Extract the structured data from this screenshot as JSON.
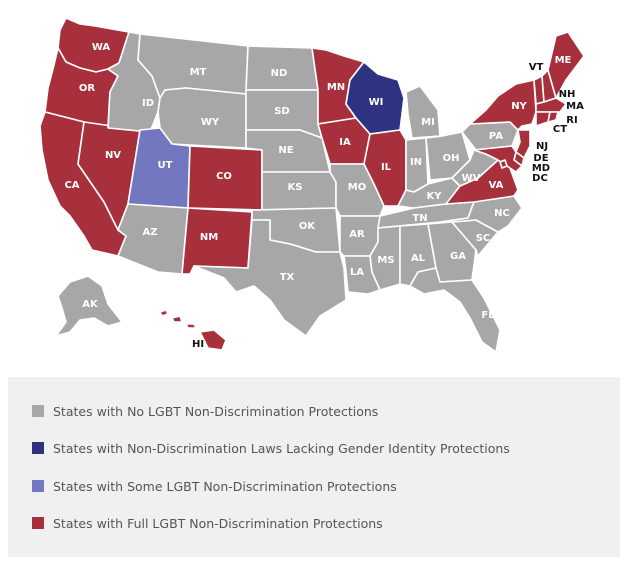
{
  "colors": {
    "none": "#a7a7a7",
    "partial_no_gender": "#2d3380",
    "some": "#7277c0",
    "full": "#a8303c"
  },
  "states": [
    {
      "abbr": "WA",
      "status": "full"
    },
    {
      "abbr": "OR",
      "status": "full"
    },
    {
      "abbr": "CA",
      "status": "full"
    },
    {
      "abbr": "NV",
      "status": "full"
    },
    {
      "abbr": "ID",
      "status": "none"
    },
    {
      "abbr": "MT",
      "status": "none"
    },
    {
      "abbr": "WY",
      "status": "none"
    },
    {
      "abbr": "UT",
      "status": "some"
    },
    {
      "abbr": "CO",
      "status": "full"
    },
    {
      "abbr": "AZ",
      "status": "none"
    },
    {
      "abbr": "NM",
      "status": "full"
    },
    {
      "abbr": "ND",
      "status": "none"
    },
    {
      "abbr": "SD",
      "status": "none"
    },
    {
      "abbr": "NE",
      "status": "none"
    },
    {
      "abbr": "KS",
      "status": "none"
    },
    {
      "abbr": "OK",
      "status": "none"
    },
    {
      "abbr": "TX",
      "status": "none"
    },
    {
      "abbr": "MN",
      "status": "full"
    },
    {
      "abbr": "IA",
      "status": "full"
    },
    {
      "abbr": "MO",
      "status": "none"
    },
    {
      "abbr": "AR",
      "status": "none"
    },
    {
      "abbr": "LA",
      "status": "none"
    },
    {
      "abbr": "WI",
      "status": "partial_no_gender"
    },
    {
      "abbr": "IL",
      "status": "full"
    },
    {
      "abbr": "MI",
      "status": "none"
    },
    {
      "abbr": "IN",
      "status": "none"
    },
    {
      "abbr": "OH",
      "status": "none"
    },
    {
      "abbr": "KY",
      "status": "none"
    },
    {
      "abbr": "TN",
      "status": "none"
    },
    {
      "abbr": "MS",
      "status": "none"
    },
    {
      "abbr": "AL",
      "status": "none"
    },
    {
      "abbr": "GA",
      "status": "none"
    },
    {
      "abbr": "FL",
      "status": "none"
    },
    {
      "abbr": "SC",
      "status": "none"
    },
    {
      "abbr": "NC",
      "status": "none"
    },
    {
      "abbr": "VA",
      "status": "full"
    },
    {
      "abbr": "WV",
      "status": "none"
    },
    {
      "abbr": "PA",
      "status": "none"
    },
    {
      "abbr": "NY",
      "status": "full"
    },
    {
      "abbr": "VT",
      "status": "full"
    },
    {
      "abbr": "NH",
      "status": "full"
    },
    {
      "abbr": "ME",
      "status": "full"
    },
    {
      "abbr": "MA",
      "status": "full"
    },
    {
      "abbr": "RI",
      "status": "full"
    },
    {
      "abbr": "CT",
      "status": "full"
    },
    {
      "abbr": "NJ",
      "status": "full"
    },
    {
      "abbr": "DE",
      "status": "full"
    },
    {
      "abbr": "MD",
      "status": "full"
    },
    {
      "abbr": "DC",
      "status": "full"
    },
    {
      "abbr": "AK",
      "status": "none"
    },
    {
      "abbr": "HI",
      "status": "full"
    }
  ],
  "legend": {
    "items": [
      {
        "key": "none",
        "label": "States with No LGBT Non-Discrimination Protections"
      },
      {
        "key": "partial_no_gender",
        "label": "States with Non-Discrimination Laws Lacking Gender Identity Protections"
      },
      {
        "key": "some",
        "label": "States with Some LGBT Non-Discrimination Protections"
      },
      {
        "key": "full",
        "label": "States with Full LGBT Non-Discrimination Protections"
      }
    ]
  }
}
